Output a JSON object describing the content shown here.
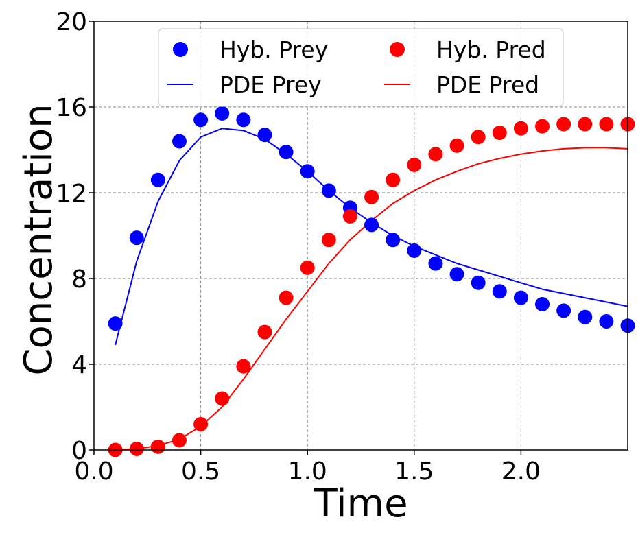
{
  "chart_data": {
    "type": "line+scatter",
    "title": "",
    "xlabel": "Time",
    "ylabel": "Concentration",
    "xlim": [
      0.0,
      2.5
    ],
    "ylim": [
      0,
      20
    ],
    "xticks": [
      0.0,
      0.5,
      1.0,
      1.5,
      2.0
    ],
    "xtick_labels": [
      "0.0",
      "0.5",
      "1.0",
      "1.5",
      "2.0"
    ],
    "yticks": [
      0,
      4,
      8,
      12,
      16,
      20
    ],
    "ytick_labels": [
      "0",
      "4",
      "8",
      "12",
      "16",
      "20"
    ],
    "grid": true,
    "legend_position": "top-center",
    "series": [
      {
        "name": "Hyb. Prey",
        "kind": "scatter",
        "color": "#0000ff",
        "x": [
          0.1,
          0.2,
          0.3,
          0.4,
          0.5,
          0.6,
          0.7,
          0.8,
          0.9,
          1.0,
          1.1,
          1.2,
          1.3,
          1.4,
          1.5,
          1.6,
          1.7,
          1.8,
          1.9,
          2.0,
          2.1,
          2.2,
          2.3,
          2.4,
          2.5
        ],
        "y": [
          5.9,
          9.9,
          12.6,
          14.4,
          15.4,
          15.7,
          15.4,
          14.7,
          13.9,
          13.0,
          12.1,
          11.3,
          10.5,
          9.8,
          9.3,
          8.7,
          8.2,
          7.8,
          7.4,
          7.1,
          6.8,
          6.5,
          6.2,
          6.0,
          5.8
        ]
      },
      {
        "name": "Hyb. Pred",
        "kind": "scatter",
        "color": "#ff0000",
        "x": [
          0.1,
          0.2,
          0.3,
          0.4,
          0.5,
          0.6,
          0.7,
          0.8,
          0.9,
          1.0,
          1.1,
          1.2,
          1.3,
          1.4,
          1.5,
          1.6,
          1.7,
          1.8,
          1.9,
          2.0,
          2.1,
          2.2,
          2.3,
          2.4,
          2.5
        ],
        "y": [
          0.0,
          0.05,
          0.15,
          0.45,
          1.2,
          2.4,
          3.9,
          5.5,
          7.1,
          8.5,
          9.8,
          10.9,
          11.8,
          12.6,
          13.3,
          13.8,
          14.2,
          14.6,
          14.8,
          15.0,
          15.1,
          15.2,
          15.2,
          15.2,
          15.2
        ]
      },
      {
        "name": "PDE Prey",
        "kind": "line",
        "color": "#0000ff",
        "x": [
          0.1,
          0.2,
          0.3,
          0.4,
          0.5,
          0.6,
          0.7,
          0.8,
          0.9,
          1.0,
          1.1,
          1.2,
          1.3,
          1.4,
          1.5,
          1.6,
          1.7,
          1.8,
          1.9,
          2.0,
          2.1,
          2.2,
          2.3,
          2.4,
          2.5
        ],
        "y": [
          4.9,
          8.8,
          11.6,
          13.5,
          14.6,
          15.0,
          14.9,
          14.5,
          13.8,
          13.0,
          12.1,
          11.3,
          10.6,
          10.0,
          9.5,
          9.1,
          8.7,
          8.4,
          8.1,
          7.8,
          7.5,
          7.3,
          7.1,
          6.9,
          6.7
        ]
      },
      {
        "name": "PDE Pred",
        "kind": "line",
        "color": "#ff0000",
        "x": [
          0.1,
          0.2,
          0.3,
          0.4,
          0.5,
          0.6,
          0.7,
          0.8,
          0.9,
          1.0,
          1.1,
          1.2,
          1.3,
          1.4,
          1.5,
          1.6,
          1.7,
          1.8,
          1.9,
          2.0,
          2.1,
          2.2,
          2.3,
          2.4,
          2.5
        ],
        "y": [
          0.0,
          0.05,
          0.2,
          0.5,
          1.1,
          2.0,
          3.3,
          4.7,
          6.1,
          7.4,
          8.7,
          9.8,
          10.7,
          11.5,
          12.1,
          12.6,
          13.0,
          13.35,
          13.6,
          13.8,
          13.95,
          14.05,
          14.1,
          14.1,
          14.05
        ]
      }
    ]
  }
}
